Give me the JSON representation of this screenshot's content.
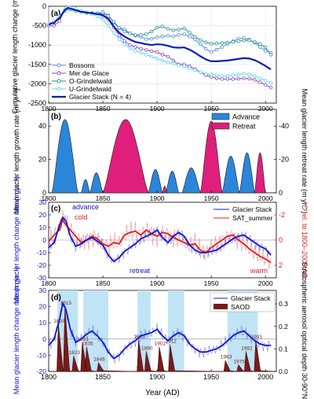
{
  "x_axis": {
    "label": "Year (AD)",
    "xlim": [
      1800,
      2010
    ],
    "ticks": [
      1800,
      1850,
      1900,
      1950,
      2000
    ]
  },
  "chart_data": [
    {
      "panel": "(a)",
      "type": "line",
      "ylabel": "Cumulative glacier length change (m)",
      "ylim": [
        -2500,
        0
      ],
      "yticks": [
        0,
        -500,
        -1000,
        -1500,
        -2000,
        -2500
      ],
      "legend": {
        "placement": "bottom-left"
      },
      "series": [
        {
          "name": "Bossons",
          "color": "#4a90d9",
          "marker": "circle-open",
          "x": [
            1800,
            1805,
            1810,
            1815,
            1818,
            1820,
            1825,
            1830,
            1835,
            1840,
            1845,
            1850,
            1855,
            1860,
            1865,
            1870,
            1875,
            1880,
            1885,
            1890,
            1895,
            1900,
            1905,
            1910,
            1915,
            1920,
            1925,
            1930,
            1935,
            1940,
            1945,
            1950,
            1955,
            1960,
            1965,
            1970,
            1975,
            1980,
            1985,
            1990,
            1995,
            2000,
            2005
          ],
          "y": [
            -480,
            -420,
            -300,
            -120,
            -60,
            -80,
            -110,
            -140,
            -160,
            -170,
            -180,
            -200,
            -230,
            -420,
            -560,
            -600,
            -700,
            -760,
            -790,
            -850,
            -840,
            -800,
            -780,
            -760,
            -780,
            -740,
            -720,
            -780,
            -860,
            -980,
            -1100,
            -1180,
            -1120,
            -1050,
            -970,
            -900,
            -840,
            -820,
            -860,
            -940,
            -1050,
            -1150,
            -1200
          ]
        },
        {
          "name": "Mer de Glace",
          "color": "#8e44c9",
          "marker": "circle-open",
          "x": [
            1800,
            1805,
            1810,
            1815,
            1818,
            1820,
            1825,
            1830,
            1835,
            1840,
            1845,
            1850,
            1855,
            1860,
            1865,
            1870,
            1875,
            1880,
            1885,
            1890,
            1895,
            1900,
            1905,
            1910,
            1915,
            1920,
            1925,
            1930,
            1935,
            1940,
            1945,
            1950,
            1955,
            1960,
            1965,
            1970,
            1975,
            1980,
            1985,
            1990,
            1995,
            2000,
            2005
          ],
          "y": [
            -500,
            -500,
            -380,
            -80,
            -40,
            -60,
            -100,
            -140,
            -170,
            -180,
            -190,
            -250,
            -350,
            -550,
            -750,
            -900,
            -1000,
            -1050,
            -1100,
            -1130,
            -1160,
            -1180,
            -1250,
            -1300,
            -1400,
            -1500,
            -1500,
            -1550,
            -1620,
            -1700,
            -1780,
            -1820,
            -1860,
            -1880,
            -1880,
            -1880,
            -1870,
            -1860,
            -1870,
            -1900,
            -1960,
            -2030,
            -2100
          ]
        },
        {
          "name": "O-Grindelwald",
          "color": "#2a8f8f",
          "marker": "circle-open",
          "x": [
            1800,
            1805,
            1810,
            1815,
            1818,
            1820,
            1825,
            1830,
            1835,
            1840,
            1845,
            1850,
            1855,
            1860,
            1865,
            1870,
            1875,
            1880,
            1885,
            1890,
            1895,
            1900,
            1905,
            1910,
            1915,
            1920,
            1925,
            1930,
            1935,
            1940,
            1945,
            1950,
            1955,
            1960,
            1965,
            1970,
            1975,
            1980,
            1985,
            1990,
            1995,
            2000,
            2005
          ],
          "y": [
            -460,
            -400,
            -280,
            -90,
            -60,
            -80,
            -120,
            -150,
            -170,
            -180,
            -180,
            -150,
            -250,
            -400,
            -550,
            -650,
            -700,
            -740,
            -740,
            -720,
            -650,
            -550,
            -520,
            -580,
            -620,
            -600,
            -570,
            -680,
            -790,
            -870,
            -930,
            -970,
            -960,
            -950,
            -940,
            -920,
            -900,
            -880,
            -880,
            -920,
            -980,
            -1060,
            -1250
          ]
        },
        {
          "name": "U-Grindelwald",
          "color": "#5fd3e6",
          "marker": "circle-open",
          "x": [
            1800,
            1805,
            1810,
            1815,
            1818,
            1820,
            1825,
            1830,
            1835,
            1840,
            1845,
            1850,
            1855,
            1860,
            1865,
            1870,
            1875,
            1880,
            1885,
            1890,
            1895,
            1900,
            1905,
            1910,
            1915,
            1920,
            1925,
            1930,
            1935,
            1940,
            1945,
            1950,
            1955,
            1960,
            1965,
            1970,
            1975,
            1980,
            1985,
            1990,
            1995,
            2000,
            2005
          ],
          "y": [
            -450,
            -380,
            -260,
            -80,
            -30,
            -40,
            -70,
            -110,
            -150,
            -200,
            -260,
            -350,
            -500,
            -700,
            -850,
            -980,
            -1080,
            -1150,
            -1200,
            -1250,
            -1300,
            -1350,
            -1400,
            -1450,
            -1480,
            -1520,
            -1550,
            -1600,
            -1650,
            -1700,
            -1740,
            -1760,
            -1780,
            -1800,
            -1800,
            -1780,
            -1760,
            -1740,
            -1760,
            -1800,
            -1860,
            -1920,
            -1980
          ]
        },
        {
          "name": "Glacier Stack (N = 4)",
          "color": "#0a1fb5",
          "marker": "none",
          "bold": true,
          "x": [
            1800,
            1805,
            1810,
            1815,
            1818,
            1820,
            1825,
            1830,
            1835,
            1840,
            1845,
            1850,
            1855,
            1860,
            1865,
            1870,
            1875,
            1880,
            1885,
            1890,
            1895,
            1900,
            1905,
            1910,
            1915,
            1920,
            1925,
            1930,
            1935,
            1940,
            1945,
            1950,
            1955,
            1960,
            1965,
            1970,
            1975,
            1980,
            1985,
            1990,
            1995,
            2000,
            2005
          ],
          "y": [
            -470,
            -420,
            -300,
            -90,
            -40,
            -60,
            -100,
            -140,
            -160,
            -180,
            -200,
            -230,
            -320,
            -520,
            -680,
            -780,
            -860,
            -920,
            -950,
            -980,
            -1000,
            -980,
            -990,
            -1020,
            -1060,
            -1070,
            -1060,
            -1120,
            -1200,
            -1290,
            -1370,
            -1420,
            -1420,
            -1410,
            -1400,
            -1380,
            -1360,
            -1340,
            -1350,
            -1390,
            -1460,
            -1540,
            -1630
          ]
        }
      ]
    },
    {
      "panel": "(b)",
      "type": "area",
      "ylabel_left": "Mean glacier length growth rate (m yr⁻¹)",
      "ylabel_right": "Mean glacier length retreat rate (m yr⁻¹)",
      "ylim": [
        0,
        50
      ],
      "yticks_left": [
        0,
        20,
        40
      ],
      "yticks_right": [
        "-40",
        "-20",
        "0"
      ],
      "legend": {
        "placement": "top-right"
      },
      "series": [
        {
          "name": "Advance",
          "color": "#2b86d9",
          "lobes": [
            [
              1803,
              1827,
              44
            ],
            [
              1830,
              1838,
              8
            ],
            [
              1838,
              1850,
              12
            ],
            [
              1892,
              1905,
              14
            ],
            [
              1908,
              1920,
              13
            ],
            [
              1923,
              1940,
              15
            ],
            [
              1960,
              1976,
              22
            ],
            [
              1976,
              1990,
              24
            ]
          ]
        },
        {
          "name": "Retreat",
          "color": "#e01f7c",
          "lobes": [
            [
              1850,
              1892,
              44
            ],
            [
              1940,
              1960,
              43
            ],
            [
              1905,
              1909,
              4
            ],
            [
              1990,
              2000,
              24
            ]
          ]
        }
      ]
    },
    {
      "panel": "(c)",
      "type": "line",
      "ylabel_left": "Mean glacier length change rate (m yr⁻¹)",
      "ylabel_right": "°C rel. to 1800–2000 AD",
      "ylim": [
        -30,
        30
      ],
      "yticks_left": [
        30,
        20,
        10,
        0,
        -10,
        -20,
        -30
      ],
      "yticks_right": [
        "-2",
        "0",
        "2"
      ],
      "annotations": [
        "advance",
        "cold",
        "retreat",
        "warm"
      ],
      "legend": {
        "placement": "top-right"
      },
      "series": [
        {
          "name": "Glacier Stack",
          "color": "#1515c8",
          "x": [
            1800,
            1805,
            1810,
            1813,
            1816,
            1820,
            1825,
            1830,
            1835,
            1840,
            1845,
            1850,
            1855,
            1860,
            1865,
            1870,
            1875,
            1880,
            1885,
            1890,
            1895,
            1900,
            1905,
            1910,
            1915,
            1920,
            1925,
            1930,
            1935,
            1940,
            1945,
            1950,
            1955,
            1960,
            1965,
            1970,
            1975,
            1980,
            1985,
            1990,
            1995,
            2000,
            2005
          ],
          "y": [
            -6,
            -2,
            12,
            18,
            15,
            3,
            -5,
            -3,
            0,
            2,
            -1,
            -4,
            -12,
            -17,
            -14,
            -9,
            -6,
            -3,
            1,
            3,
            5,
            8,
            2,
            -2,
            3,
            6,
            3,
            -4,
            -8,
            -10,
            -10,
            -9,
            -8,
            -5,
            -2,
            1,
            3,
            4,
            1,
            -2,
            -5,
            -7,
            -12
          ]
        },
        {
          "name": "SAT_summer",
          "color": "#e02020",
          "x": [
            1800,
            1805,
            1810,
            1813,
            1816,
            1820,
            1825,
            1830,
            1835,
            1840,
            1845,
            1850,
            1855,
            1860,
            1865,
            1870,
            1875,
            1880,
            1885,
            1890,
            1895,
            1900,
            1905,
            1910,
            1915,
            1920,
            1925,
            1930,
            1935,
            1940,
            1945,
            1950,
            1955,
            1960,
            1965,
            1970,
            1975,
            1980,
            1985,
            1990,
            1995,
            2000,
            2005
          ],
          "y": [
            0.1,
            -0.4,
            -0.8,
            -1.6,
            -1.2,
            -0.8,
            -0.3,
            0.2,
            0.0,
            -0.3,
            -0.1,
            0.3,
            0.5,
            0.2,
            0.3,
            -0.4,
            -0.6,
            -0.7,
            -0.4,
            -0.8,
            -0.5,
            -0.3,
            -0.6,
            -0.5,
            -0.2,
            0.0,
            0.2,
            0.4,
            0.3,
            0.8,
            1.0,
            0.6,
            0.3,
            0.0,
            -0.3,
            -0.4,
            0.0,
            0.3,
            0.7,
            1.0,
            1.3,
            1.5,
            1.8
          ]
        }
      ]
    },
    {
      "panel": "(d)",
      "type": "line",
      "ylabel_left": "Mean glacier length change rate (m yr⁻¹)",
      "ylabel_right": "Stratospheric aerosol optical depth 30-90°N",
      "ylim": [
        -20,
        30
      ],
      "yticks_left": [
        30,
        20,
        10,
        0,
        -10,
        -20
      ],
      "yticks_right": [
        0.3,
        0.2,
        0.1,
        0.0
      ],
      "shaded_periods": [
        [
          1808,
          1827
        ],
        [
          1832,
          1855
        ],
        [
          1882,
          1894
        ],
        [
          1910,
          1925
        ],
        [
          1965,
          1993
        ]
      ],
      "legend": {
        "placement": "top-right"
      },
      "series": [
        {
          "name": "Glacier Stack",
          "color": "#1515c8",
          "x": [
            1800,
            1805,
            1810,
            1813,
            1816,
            1820,
            1825,
            1830,
            1835,
            1840,
            1845,
            1850,
            1855,
            1860,
            1865,
            1870,
            1875,
            1880,
            1885,
            1890,
            1895,
            1900,
            1905,
            1910,
            1915,
            1920,
            1925,
            1930,
            1935,
            1940,
            1945,
            1950,
            1955,
            1960,
            1965,
            1970,
            1975,
            1980,
            1985,
            1990,
            1995,
            2000,
            2005
          ],
          "y": [
            -4,
            0,
            12,
            22,
            18,
            6,
            -2,
            0,
            3,
            5,
            2,
            -2,
            -8,
            -12,
            -10,
            -6,
            -3,
            -1,
            2,
            3,
            4,
            6,
            2,
            -1,
            2,
            4,
            2,
            -3,
            -6,
            -8,
            -8,
            -7,
            -6,
            -4,
            -1,
            2,
            4,
            5,
            2,
            -1,
            -3,
            -4,
            -4
          ]
        },
        {
          "name": "SAOD",
          "color": "#7a1a1a",
          "eruptions": [
            [
              1809,
              0.21
            ],
            [
              1815,
              0.29
            ],
            [
              1823,
              0.07
            ],
            [
              1831,
              0.13
            ],
            [
              1835,
              0.11
            ],
            [
              1846,
              0.04
            ],
            [
              1883,
              0.14
            ],
            [
              1890,
              0.09
            ],
            [
              1902,
              0.11
            ],
            [
              1912,
              0.12
            ],
            [
              1963,
              0.05
            ],
            [
              1975,
              0.03
            ],
            [
              1982,
              0.09
            ],
            [
              1991,
              0.14
            ]
          ],
          "labels": [
            "1809",
            "1815",
            "1823",
            "1831",
            "1835",
            "1846",
            "1883",
            "1890",
            "1902",
            "1912",
            "1963",
            "1975",
            "1982",
            "1991"
          ]
        }
      ]
    }
  ]
}
